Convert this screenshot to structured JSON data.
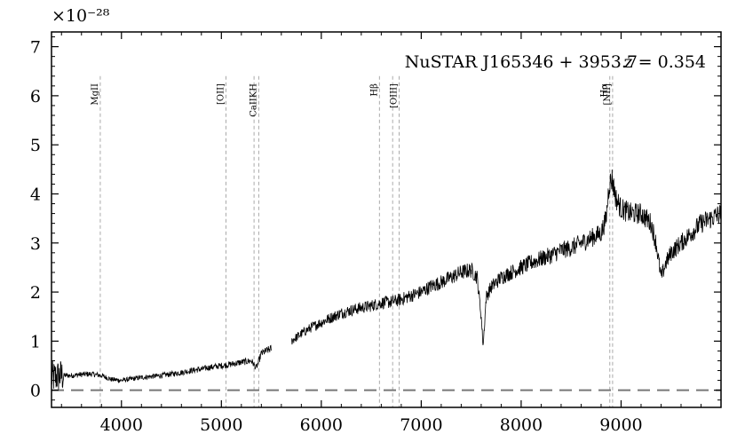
{
  "chart_data": {
    "type": "line",
    "title": "NuSTAR J165346 + 3953.7",
    "redshift_label": "z = 0.354",
    "xlabel": "",
    "ylabel": "",
    "y_scale_factor_label": "×10⁻²⁸",
    "xlim": [
      3300,
      10000
    ],
    "ylim": [
      -0.35,
      7.3
    ],
    "grid": false,
    "x_ticks": [
      4000,
      5000,
      6000,
      7000,
      8000,
      9000
    ],
    "x_tick_labels": [
      "4000",
      "5000",
      "6000",
      "7000",
      "8000",
      "9000"
    ],
    "y_ticks": [
      0,
      1,
      2,
      3,
      4,
      5,
      6,
      7
    ],
    "y_tick_labels": [
      "0",
      "1",
      "2",
      "3",
      "4",
      "5",
      "6",
      "7"
    ],
    "zero_line": 0,
    "emission_lines": [
      {
        "label": "MgII",
        "x": [
          3788
        ]
      },
      {
        "label": "[OII]",
        "x": [
          5046
        ]
      },
      {
        "label": "CaIIKH",
        "x": [
          5327,
          5374
        ]
      },
      {
        "label": "Hβ",
        "x": [
          6582
        ]
      },
      {
        "label": "[OIII]",
        "x": [
          6714,
          6779
        ]
      },
      {
        "label": "Hα",
        "x": [
          8887
        ]
      },
      {
        "label": "[NII]",
        "x": [
          8915
        ]
      }
    ],
    "series": [
      {
        "segments": [
          {
            "x": [
              3300,
              3400,
              3500,
              3600,
              3700,
              3800,
              3900,
              4000,
              4100,
              4200,
              4300,
              4400,
              4500,
              4600,
              4700,
              4800,
              4900,
              5000,
              5100,
              5200,
              5300,
              5350,
              5400,
              5450,
              5500
            ],
            "y": [
              0.25,
              0.3,
              0.3,
              0.32,
              0.33,
              0.3,
              0.22,
              0.2,
              0.23,
              0.26,
              0.28,
              0.3,
              0.33,
              0.36,
              0.4,
              0.43,
              0.47,
              0.5,
              0.53,
              0.57,
              0.6,
              0.45,
              0.75,
              0.8,
              0.85
            ]
          },
          {
            "x": [
              5700,
              5800,
              5900,
              6000,
              6100,
              6200,
              6300,
              6400,
              6500,
              6600,
              6700,
              6800,
              6900,
              7000,
              7100,
              7200,
              7300,
              7400,
              7500,
              7560,
              7600,
              7620,
              7650,
              7700,
              7800,
              7900,
              8000,
              8100,
              8200,
              8300,
              8400,
              8500,
              8600,
              8700,
              8800,
              8850,
              8880,
              8910,
              8950,
              9000,
              9100,
              9200,
              9300,
              9350,
              9400,
              9450,
              9500,
              9600,
              9700,
              9800,
              9900,
              10000
            ],
            "y": [
              1.0,
              1.15,
              1.28,
              1.38,
              1.48,
              1.57,
              1.63,
              1.68,
              1.72,
              1.78,
              1.8,
              1.85,
              1.93,
              2.0,
              2.12,
              2.2,
              2.3,
              2.4,
              2.45,
              2.3,
              1.5,
              0.9,
              1.9,
              2.1,
              2.3,
              2.4,
              2.5,
              2.6,
              2.68,
              2.75,
              2.85,
              2.9,
              3.0,
              3.1,
              3.2,
              3.5,
              4.2,
              4.3,
              3.9,
              3.7,
              3.6,
              3.6,
              3.4,
              3.0,
              2.3,
              2.6,
              2.8,
              3.0,
              3.2,
              3.4,
              3.5,
              3.6
            ]
          }
        ]
      }
    ]
  }
}
